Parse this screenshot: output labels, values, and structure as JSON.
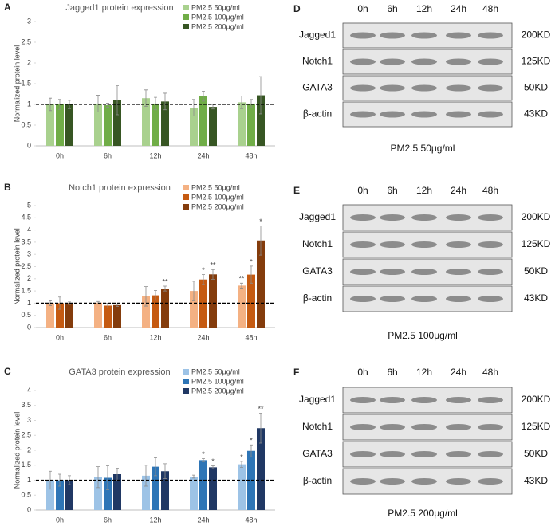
{
  "chart_data": [
    {
      "type": "bar",
      "panel": "A",
      "title": "Jagged1 protein expression",
      "y_label": "Normalized protein level",
      "categories": [
        "0h",
        "6h",
        "12h",
        "24h",
        "48h"
      ],
      "ylim": [
        0,
        3
      ],
      "yticks": [
        0,
        0.5,
        1,
        1.5,
        2,
        2.5,
        3
      ],
      "reference_line": 1,
      "series": [
        {
          "name": "PM2.5 50μg/ml",
          "color": "#a9d18e",
          "values": [
            1,
            1.02,
            1.15,
            0.92,
            1.05
          ],
          "errors": [
            0.15,
            0.2,
            0.2,
            0.2,
            0.15
          ],
          "annotations": [
            null,
            null,
            null,
            null,
            null
          ]
        },
        {
          "name": "PM2.5 100μg/ml",
          "color": "#70ad47",
          "values": [
            1,
            0.98,
            1.02,
            1.2,
            1.02
          ],
          "errors": [
            0.12,
            0.05,
            0.15,
            0.12,
            0.1
          ],
          "annotations": [
            null,
            null,
            null,
            null,
            null
          ]
        },
        {
          "name": "PM2.5 200μg/ml",
          "color": "#375623",
          "values": [
            1,
            1.1,
            1.07,
            0.94,
            1.22
          ],
          "errors": [
            0.1,
            0.35,
            0.2,
            0.05,
            0.45
          ],
          "annotations": [
            null,
            null,
            null,
            null,
            null
          ]
        }
      ]
    },
    {
      "type": "bar",
      "panel": "B",
      "title": "Notch1 protein expression",
      "y_label": "Normalized protein level",
      "categories": [
        "0h",
        "6h",
        "12h",
        "24h",
        "48h"
      ],
      "ylim": [
        0,
        5
      ],
      "yticks": [
        0,
        0.5,
        1,
        1.5,
        2,
        2.5,
        3,
        3.5,
        4,
        4.5,
        5
      ],
      "reference_line": 1,
      "series": [
        {
          "name": "PM2.5 50μg/ml",
          "color": "#f4b183",
          "values": [
            1,
            1.02,
            1.28,
            1.5,
            1.72
          ],
          "errors": [
            0.1,
            0.05,
            0.4,
            0.4,
            0.1
          ],
          "annotations": [
            null,
            null,
            null,
            null,
            "**"
          ]
        },
        {
          "name": "PM2.5 100μg/ml",
          "color": "#c55a11",
          "values": [
            1,
            0.9,
            1.32,
            1.97,
            2.17
          ],
          "errors": [
            0.25,
            0.1,
            0.2,
            0.2,
            0.35
          ],
          "annotations": [
            null,
            null,
            null,
            "*",
            "*"
          ]
        },
        {
          "name": "PM2.5 200μg/ml",
          "color": "#843c0c",
          "values": [
            1,
            0.92,
            1.6,
            2.18,
            3.57
          ],
          "errors": [
            0.05,
            0.05,
            0.1,
            0.2,
            0.6
          ],
          "annotations": [
            null,
            null,
            "**",
            "**",
            "*"
          ]
        }
      ]
    },
    {
      "type": "bar",
      "panel": "C",
      "title": "GATA3 protein expression",
      "y_label": "Normalized protein level",
      "categories": [
        "0h",
        "6h",
        "12h",
        "24h",
        "48h"
      ],
      "ylim": [
        0,
        4
      ],
      "yticks": [
        0,
        0.5,
        1,
        1.5,
        2,
        2.5,
        3,
        3.5,
        4
      ],
      "reference_line": 1,
      "series": [
        {
          "name": "PM2.5 50μg/ml",
          "color": "#9dc3e6",
          "values": [
            1,
            1.1,
            1.15,
            1.12,
            1.53
          ],
          "errors": [
            0.3,
            0.35,
            0.35,
            0.05,
            0.1
          ],
          "annotations": [
            null,
            null,
            null,
            null,
            "*"
          ]
        },
        {
          "name": "PM2.5 100μg/ml",
          "color": "#2e75b6",
          "values": [
            1,
            1.08,
            1.45,
            1.67,
            1.98
          ],
          "errors": [
            0.2,
            0.4,
            0.3,
            0.05,
            0.2
          ],
          "annotations": [
            null,
            null,
            null,
            "*",
            "*"
          ]
        },
        {
          "name": "PM2.5 200μg/ml",
          "color": "#203864",
          "values": [
            1,
            1.2,
            1.3,
            1.43,
            2.74
          ],
          "errors": [
            0.15,
            0.2,
            0.25,
            0.05,
            0.5
          ],
          "annotations": [
            null,
            null,
            null,
            "*",
            "**"
          ]
        }
      ]
    }
  ],
  "blots": [
    {
      "panel": "D",
      "lanes": [
        "0h",
        "6h",
        "12h",
        "24h",
        "48h"
      ],
      "caption": "PM2.5 50μg/ml",
      "rows": [
        {
          "protein": "Jagged1",
          "size": "200KD"
        },
        {
          "protein": "Notch1",
          "size": "125KD"
        },
        {
          "protein": "GATA3",
          "size": "50KD"
        },
        {
          "protein": "β-actin",
          "size": "43KD"
        }
      ]
    },
    {
      "panel": "E",
      "lanes": [
        "0h",
        "6h",
        "12h",
        "24h",
        "48h"
      ],
      "caption": "PM2.5 100μg/ml",
      "rows": [
        {
          "protein": "Jagged1",
          "size": "200KD"
        },
        {
          "protein": "Notch1",
          "size": "125KD"
        },
        {
          "protein": "GATA3",
          "size": "50KD"
        },
        {
          "protein": "β-actin",
          "size": "43KD"
        }
      ]
    },
    {
      "panel": "F",
      "lanes": [
        "0h",
        "6h",
        "12h",
        "24h",
        "48h"
      ],
      "caption": "PM2.5 200μg/ml",
      "rows": [
        {
          "protein": "Jagged1",
          "size": "200KD"
        },
        {
          "protein": "Notch1",
          "size": "125KD"
        },
        {
          "protein": "GATA3",
          "size": "50KD"
        },
        {
          "protein": "β-actin",
          "size": "43KD"
        }
      ]
    }
  ]
}
